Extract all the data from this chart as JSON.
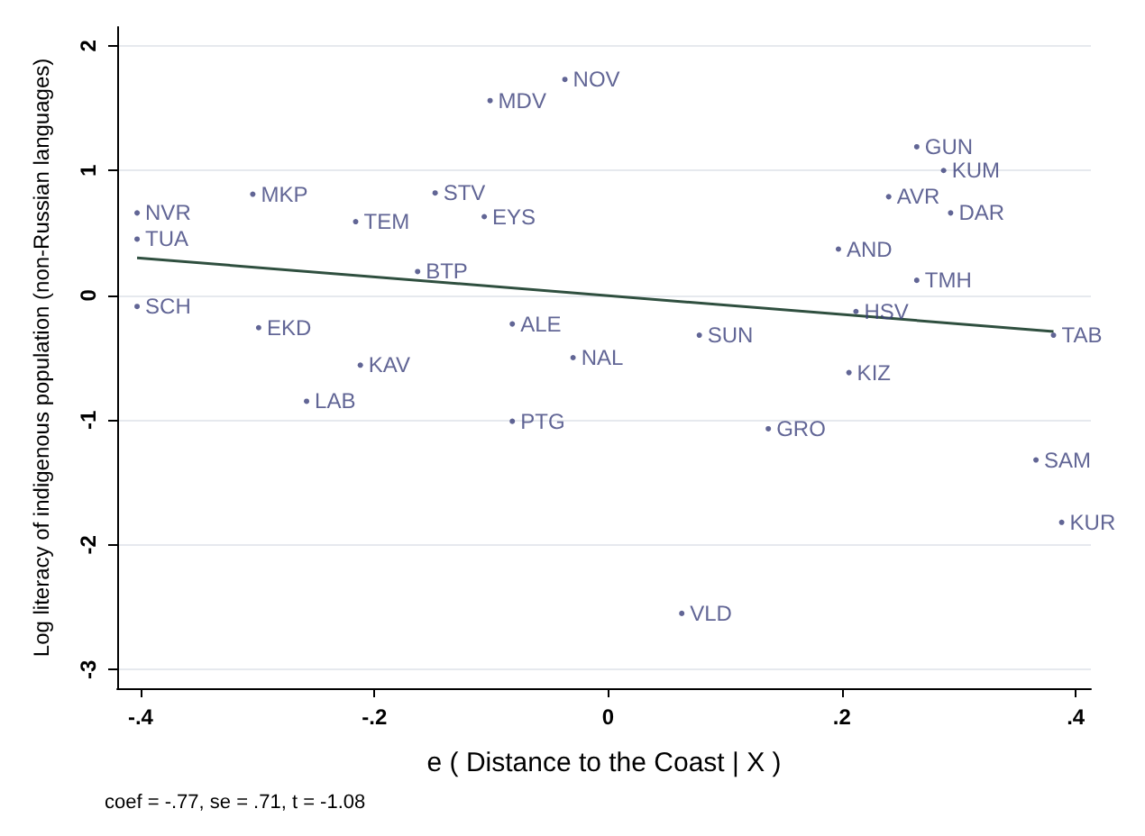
{
  "chart_data": {
    "type": "scatter",
    "xlabel": "e ( Distance to the Coast | X )",
    "ylabel": "Log literacy of indigenous population (non-Russian languages)",
    "annotations": [
      "coef = -.77, se = .71, t = -1.08"
    ],
    "xlim": [
      -0.42,
      0.413
    ],
    "ylim": [
      -3.15,
      2.15
    ],
    "xticks": [
      {
        "value": -0.4,
        "label": "-.4"
      },
      {
        "value": -0.2,
        "label": "-.2"
      },
      0,
      {
        "value": 0.2,
        "label": ".2"
      },
      {
        "value": 0.4,
        "label": ".4"
      }
    ],
    "yticks": [
      -3,
      -2,
      -1,
      0,
      1,
      2
    ],
    "grid": "y",
    "series": [
      {
        "color": "#3a3f7a",
        "marker": "circle",
        "x": [
          -0.403,
          -0.403,
          -0.403,
          -0.304,
          -0.299,
          -0.216,
          -0.212,
          -0.258,
          -0.148,
          -0.163,
          -0.106,
          -0.101,
          -0.082,
          -0.082,
          -0.037,
          -0.03,
          0.078,
          0.063,
          0.137,
          0.197,
          0.212,
          0.206,
          0.24,
          0.264,
          0.287,
          0.293,
          0.264,
          0.381,
          0.366,
          0.388
        ],
        "values": [
          0.66,
          0.45,
          -0.09,
          0.81,
          -0.26,
          0.59,
          -0.56,
          -0.85,
          0.82,
          0.19,
          0.63,
          1.56,
          -0.23,
          -1.01,
          1.73,
          -0.5,
          -0.32,
          -2.55,
          -1.07,
          0.37,
          -0.13,
          -0.62,
          0.79,
          1.19,
          1.0,
          0.66,
          0.12,
          -0.32,
          -1.32,
          -1.82
        ],
        "value_labels": [
          "NVR",
          "TUA",
          "SCH",
          "MKP",
          "EKD",
          "TEM",
          "KAV",
          "LAB",
          "STV",
          "BTP",
          "EYS",
          "MDV",
          "ALE",
          "PTG",
          "NOV",
          "NAL",
          "SUN",
          "VLD",
          "GRO",
          "AND",
          "HSV",
          "KIZ",
          "AVR",
          "GUN",
          "KUM",
          "DAR",
          "TMH",
          "TAB",
          "SAM",
          "KUR"
        ]
      },
      {
        "type": "line",
        "color": "#2f4f3f",
        "marker": "none",
        "x": [
          -0.403,
          0.381
        ],
        "values": [
          0.3,
          -0.29
        ]
      }
    ]
  }
}
